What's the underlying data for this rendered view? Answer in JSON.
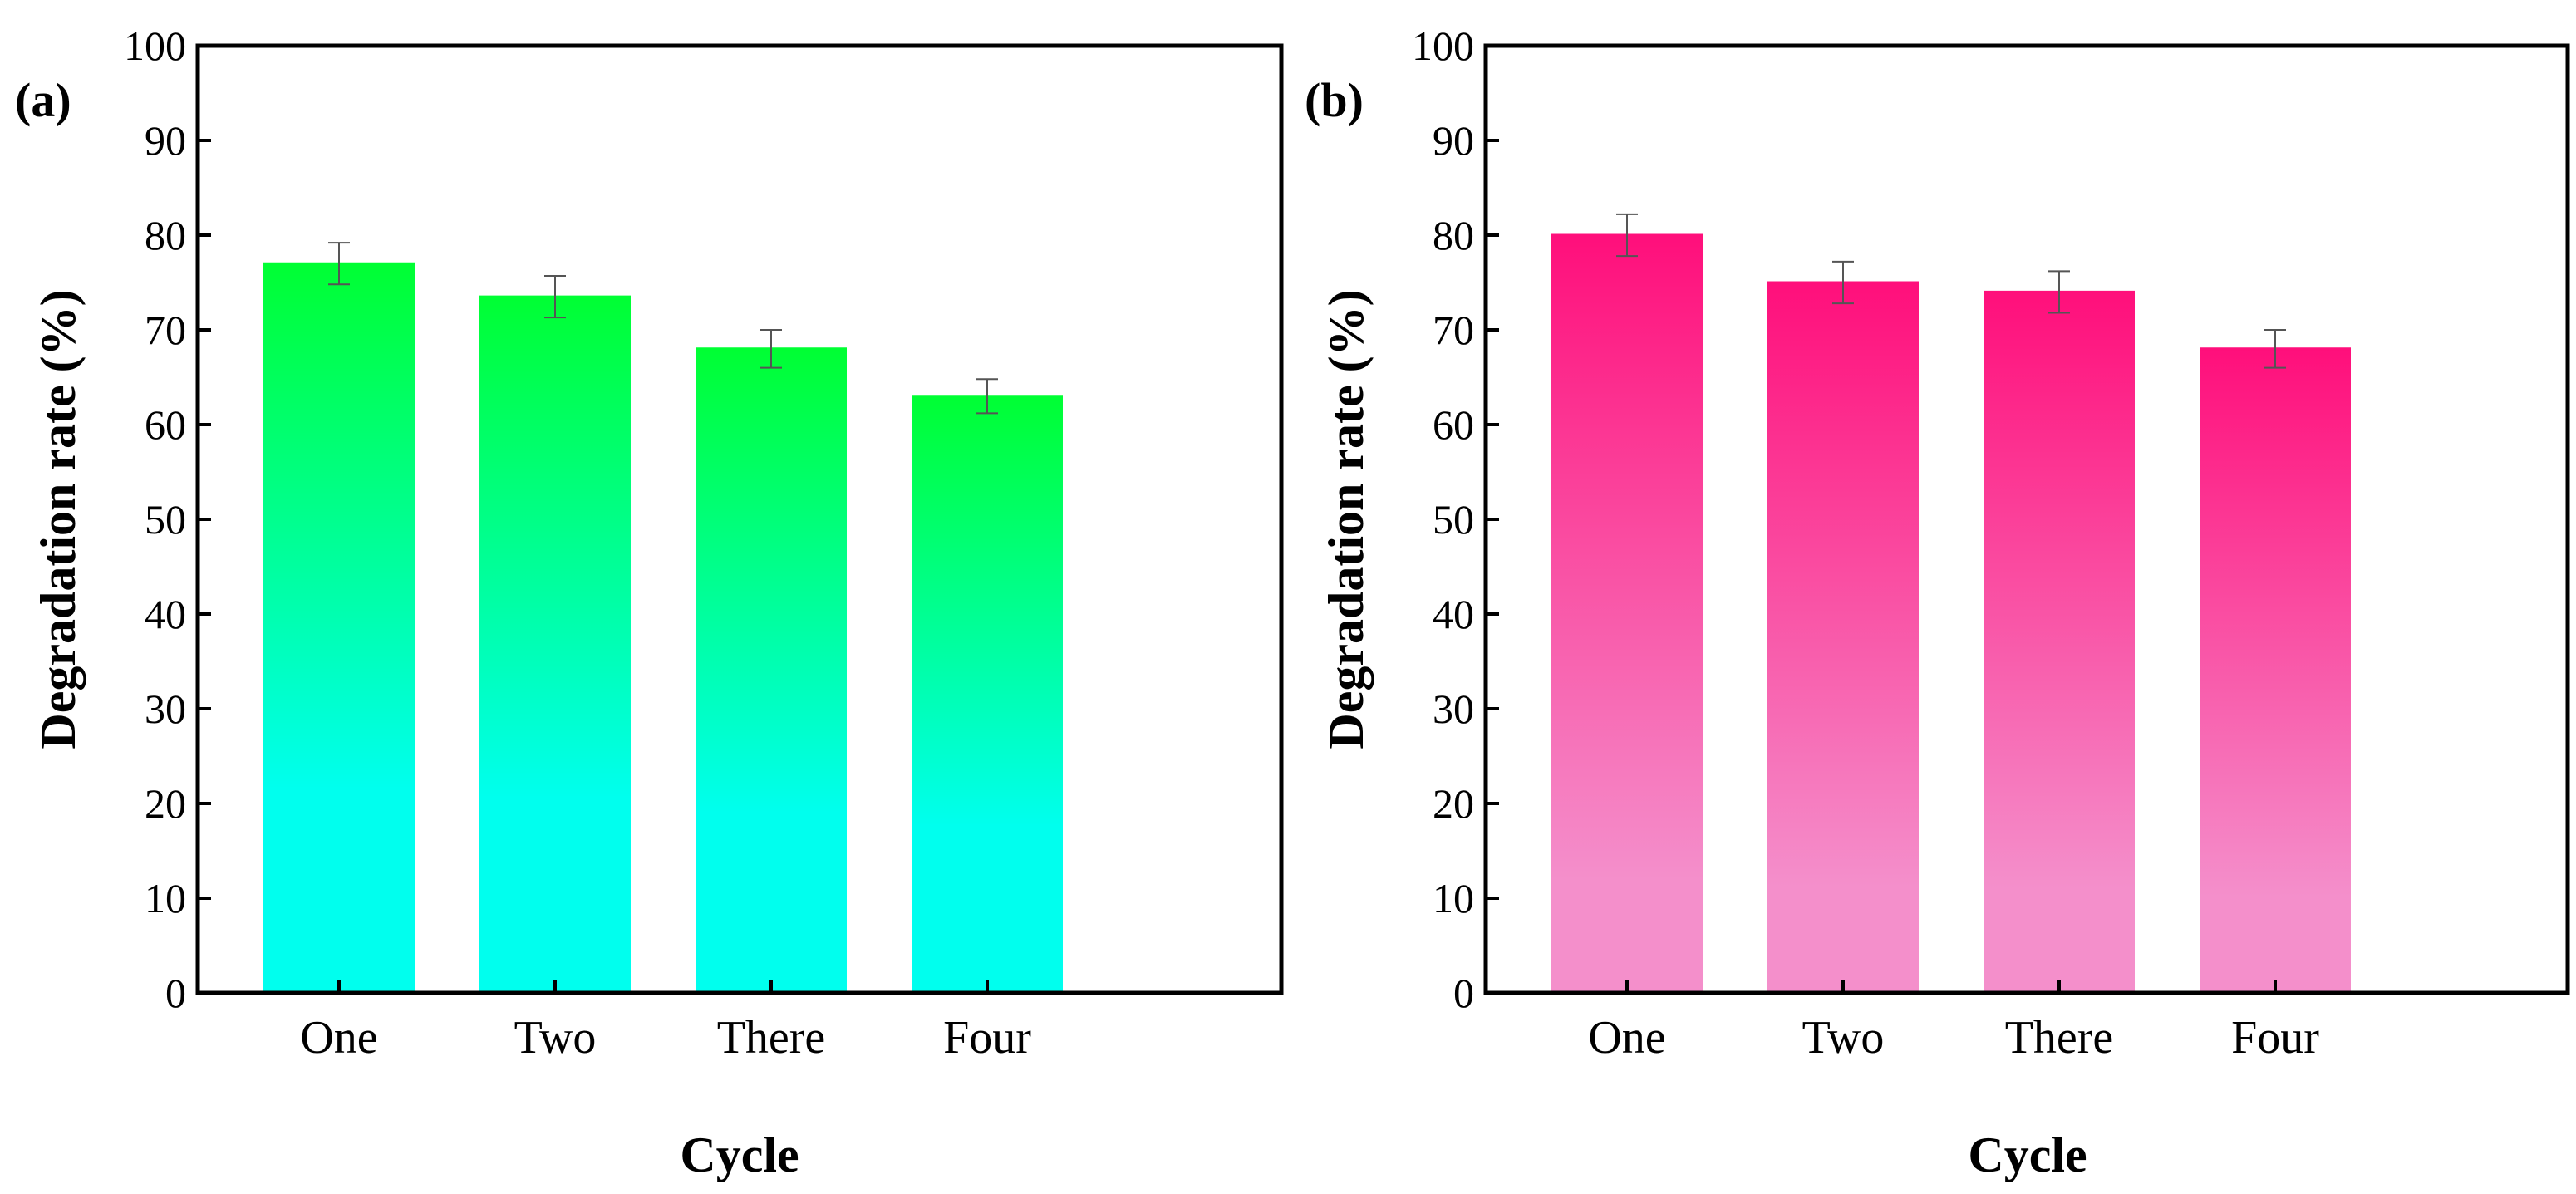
{
  "chart_data": [
    {
      "type": "bar",
      "panel_label": "(a)",
      "categories": [
        "One",
        "Two",
        "There",
        "Four"
      ],
      "values": [
        77,
        73.5,
        68,
        63
      ],
      "errors": [
        2.2,
        2.2,
        2.0,
        1.8
      ],
      "xlabel": "Cycle",
      "ylabel": "Degradation rate (%)",
      "ylim": [
        0,
        100
      ],
      "yticks": [
        0,
        10,
        20,
        30,
        40,
        50,
        60,
        70,
        80,
        90,
        100
      ],
      "gradient": {
        "top": "#00ff33",
        "bottom": "#00ffee"
      }
    },
    {
      "type": "bar",
      "panel_label": "(b)",
      "categories": [
        "One",
        "Two",
        "There",
        "Four"
      ],
      "values": [
        80,
        75,
        74,
        68
      ],
      "errors": [
        2.2,
        2.2,
        2.2,
        2.0
      ],
      "xlabel": "Cycle",
      "ylabel": "Degradation rate (%)",
      "ylim": [
        0,
        100
      ],
      "yticks": [
        0,
        10,
        20,
        30,
        40,
        50,
        60,
        70,
        80,
        90,
        100
      ],
      "gradient": {
        "top": "#ff0f7b",
        "bottom": "#f48fcb"
      }
    }
  ]
}
